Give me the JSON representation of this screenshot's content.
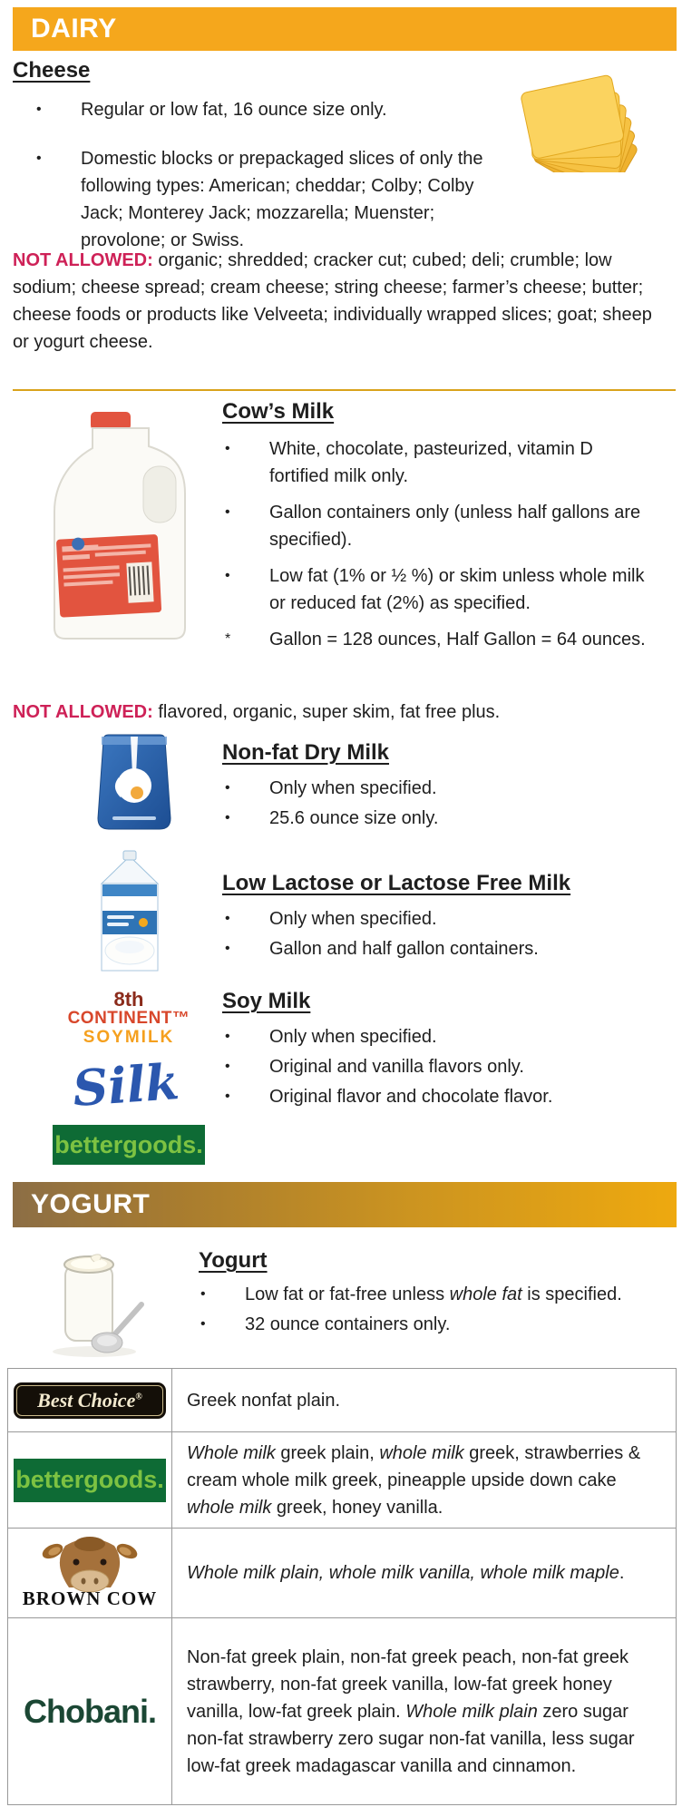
{
  "colors": {
    "dairy_header_bg": "#F5A71C",
    "yogurt_header_gradient_left": "#8C6E45",
    "yogurt_header_gradient_right": "#EEA90F",
    "not_allowed_red": "#CE2157",
    "body_text": "#1E1E1E",
    "gold_divider": "#D9A21B",
    "table_border": "#999999",
    "bettergoods_bg": "#0E6B35",
    "bettergoods_text": "#7DC242",
    "silk_blue": "#2B57AE",
    "chobani_green": "#1B4734"
  },
  "dairy": {
    "header": "DAIRY"
  },
  "cheese": {
    "title": "Cheese",
    "image": "cheese-slices-image",
    "bullets": [
      {
        "marker": "•",
        "text": "Regular or low fat, 16 ounce size only."
      },
      {
        "marker": "•",
        "text": "Domestic blocks or prepackaged slices of only the following types: American; cheddar; Colby; Colby Jack; Monterey Jack; mozzarella; Muenster; provolone; or Swiss."
      }
    ],
    "not_allowed_label": "NOT ALLOWED:",
    "not_allowed_text": "organic; shredded; cracker cut; cubed; deli; crumble; low sodium; cheese spread; cream cheese; string cheese; farmer’s cheese; butter; cheese foods or products like Velveeta; individually wrapped slices; goat; sheep or yogurt cheese."
  },
  "cows_milk": {
    "title": "Cow’s Milk",
    "image": "milk-gallon-image",
    "bullets": [
      {
        "marker": "•",
        "text": "White, chocolate, pasteurized, vitamin D fortified milk only."
      },
      {
        "marker": "•",
        "text": "Gallon containers only (unless half gallons are specified)."
      },
      {
        "marker": "•",
        "text": "Low fat (1% or ½ %) or skim unless whole milk or reduced fat (2%) as specified."
      },
      {
        "marker": "*",
        "text": "Gallon = 128 ounces, Half Gallon = 64 ounces."
      }
    ],
    "not_allowed_label": "NOT ALLOWED:",
    "not_allowed_text": "flavored, organic, super skim, fat free plus."
  },
  "nonfat_dry_milk": {
    "title": "Non-fat Dry Milk",
    "image": "dry-milk-pouch-image",
    "bullets": [
      {
        "marker": "•",
        "text": "Only when specified."
      },
      {
        "marker": "•",
        "text": "25.6 ounce size only."
      }
    ]
  },
  "lactose_free": {
    "title": "Low Lactose or Lactose Free Milk",
    "image": "lactose-free-carton-image",
    "bullets": [
      {
        "marker": "•",
        "text": "Only when specified."
      },
      {
        "marker": "•",
        "text": "Gallon and half gallon containers."
      }
    ]
  },
  "soy_milk": {
    "title": "Soy Milk",
    "bullets": [
      {
        "marker": "•",
        "text": "Only when specified."
      },
      {
        "marker": "•",
        "text": "Original and vanilla flavors only."
      },
      {
        "marker": "•",
        "text": "Original flavor and chocolate flavor."
      }
    ],
    "logos": {
      "eighth_continent": {
        "line1": "8th",
        "line2": "CONTINENT™",
        "line3": "SOYMILK"
      },
      "silk": "Silk",
      "bettergoods": "bettergoods."
    }
  },
  "yogurt_header": {
    "title": "YOGURT"
  },
  "yogurt": {
    "title": "Yogurt",
    "image": "yogurt-jar-image",
    "bullets": [
      {
        "marker": "•",
        "segments": [
          {
            "t": "Low fat or fat-free unless "
          },
          {
            "t": "whole fat",
            "i": true
          },
          {
            "t": " is specified."
          }
        ]
      },
      {
        "marker": "•",
        "segments": [
          {
            "t": "32 ounce containers only."
          }
        ]
      }
    ]
  },
  "table": {
    "rows": [
      {
        "brand": "Best Choice",
        "reg": "®",
        "desc": [
          {
            "t": "Greek nonfat plain."
          }
        ]
      },
      {
        "brand": "bettergoods.",
        "desc": [
          {
            "t": "Whole milk",
            "i": true
          },
          {
            "t": " greek plain, "
          },
          {
            "t": "whole milk",
            "i": true
          },
          {
            "t": " greek, strawberries & cream whole milk greek, pineapple upside down cake "
          },
          {
            "t": "whole milk",
            "i": true
          },
          {
            "t": " greek, honey vanilla."
          }
        ]
      },
      {
        "brand": "BROWN COW",
        "desc": [
          {
            "t": "Whole milk plain, whole milk vanilla, whole milk maple",
            "i": true
          },
          {
            "t": "."
          }
        ]
      },
      {
        "brand": "Chobani.",
        "desc": [
          {
            "t": "Non-fat greek plain, non-fat greek peach, non-fat greek strawberry, non-fat greek vanilla, low-fat greek honey vanilla, low-fat greek plain. "
          },
          {
            "t": "Whole milk plain",
            "i": true
          },
          {
            "t": " zero sugar non-fat strawberry zero sugar non-fat vanilla, less sugar low-fat greek madagascar vanilla and cinnamon."
          }
        ]
      }
    ]
  }
}
